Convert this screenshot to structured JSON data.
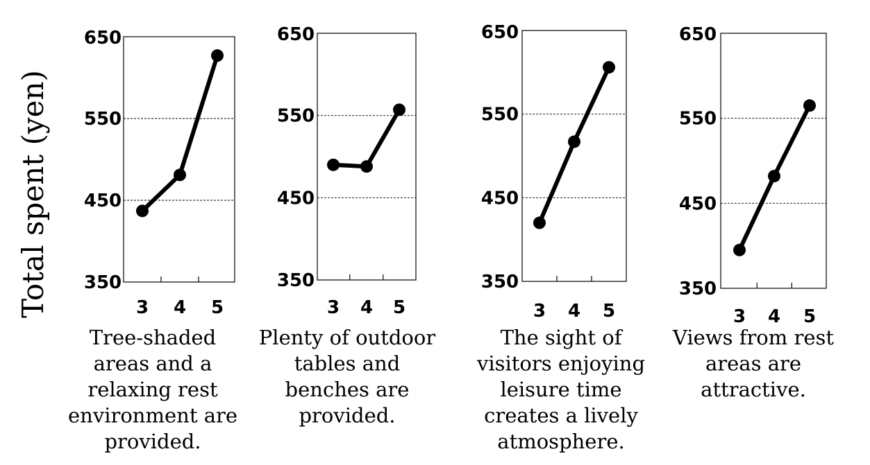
{
  "y_axis_title": "Total spent (yen)",
  "chart_data": [
    {
      "type": "line",
      "x": [
        "3",
        "4",
        "5"
      ],
      "values": [
        437,
        481,
        627
      ],
      "yticks": [
        "650",
        "550",
        "450",
        "350"
      ],
      "ylim": [
        350,
        650
      ],
      "grid": "dashed horizontal at 450 and 550",
      "caption": [
        "Tree-shaded",
        "areas and a",
        "relaxing rest",
        "environment are",
        "provided."
      ]
    },
    {
      "type": "line",
      "x": [
        "3",
        "4",
        "5"
      ],
      "values": [
        490,
        488,
        557
      ],
      "yticks": [
        "650",
        "550",
        "450",
        "350"
      ],
      "ylim": [
        350,
        650
      ],
      "grid": "dashed horizontal at 450 and 550",
      "caption": [
        "Plenty of outdoor",
        "tables and",
        "benches are",
        "provided."
      ]
    },
    {
      "type": "line",
      "x": [
        "3",
        "4",
        "5"
      ],
      "values": [
        420,
        517,
        606
      ],
      "yticks": [
        "650",
        "550",
        "450",
        "350"
      ],
      "ylim": [
        350,
        650
      ],
      "grid": "dashed horizontal at 450 and 550",
      "caption": [
        "The sight of",
        "visitors enjoying",
        "leisure time",
        "creates a lively",
        "atmosphere."
      ]
    },
    {
      "type": "line",
      "x": [
        "3",
        "4",
        "5"
      ],
      "values": [
        395,
        482,
        565
      ],
      "yticks": [
        "650",
        "550",
        "450",
        "350"
      ],
      "ylim": [
        350,
        650
      ],
      "grid": "dashed horizontal at 450 and 550",
      "caption": [
        "Views from rest",
        "areas are",
        "attractive."
      ]
    }
  ]
}
